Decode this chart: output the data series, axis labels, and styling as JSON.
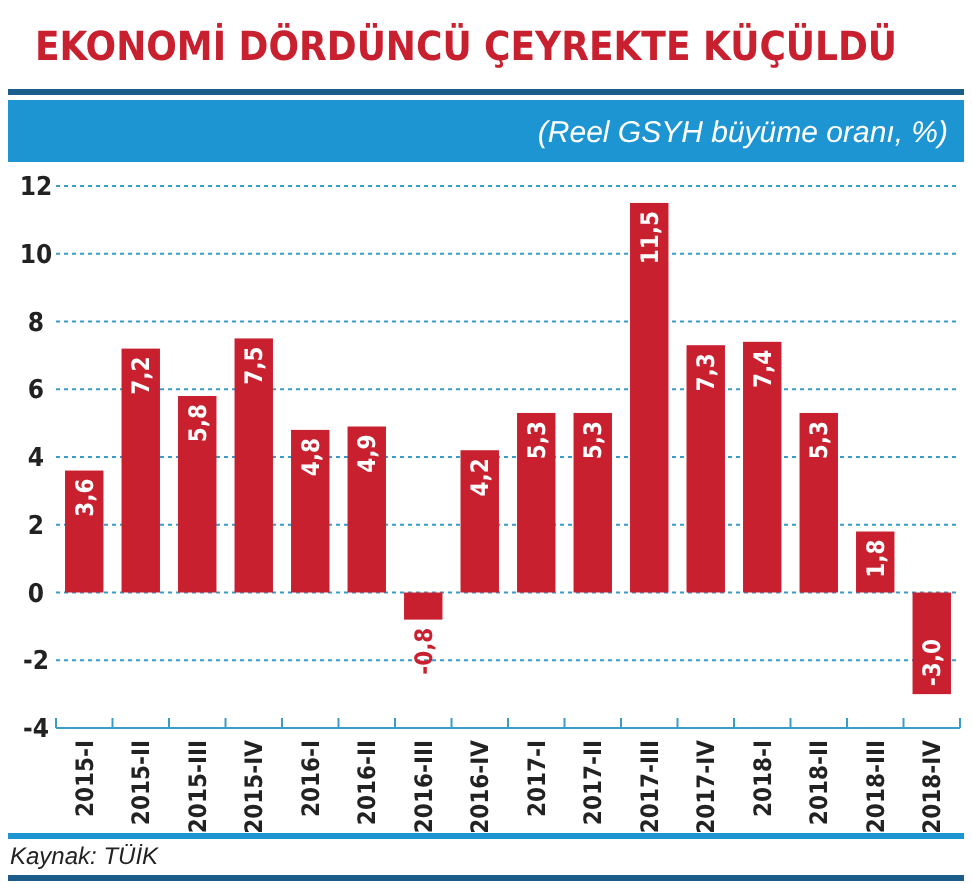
{
  "chart_data": {
    "type": "bar",
    "title": "EKONOMİ DÖRDÜNCÜ ÇEYREKTE KÜÇÜLDÜ",
    "subtitle": "(Reel GSYH büyüme oranı, %)",
    "categories": [
      "2015-I",
      "2015-II",
      "2015-III",
      "2015-IV",
      "2016-I",
      "2016-II",
      "2016-III",
      "2016-IV",
      "2017-I",
      "2017-II",
      "2017-III",
      "2017-IV",
      "2018-I",
      "2018-II",
      "2018-III",
      "2018-IV"
    ],
    "values": [
      3.6,
      7.2,
      5.8,
      7.5,
      4.8,
      4.9,
      -0.8,
      4.2,
      5.3,
      5.3,
      11.5,
      7.3,
      7.4,
      5.3,
      1.8,
      -3.0
    ],
    "value_labels": [
      "3,6",
      "7,2",
      "5,8",
      "7,5",
      "4,8",
      "4,9",
      "-0,8",
      "4,2",
      "5,3",
      "5,3",
      "11,5",
      "7,3",
      "7,4",
      "5,3",
      "1,8",
      "-3,0"
    ],
    "color": "#c8202e",
    "ylim": [
      -4,
      12
    ],
    "yticks": [
      -4,
      -2,
      0,
      2,
      4,
      6,
      8,
      10,
      12
    ],
    "grid": "y",
    "annotations": [
      "Kaynak: TÜİK"
    ]
  }
}
